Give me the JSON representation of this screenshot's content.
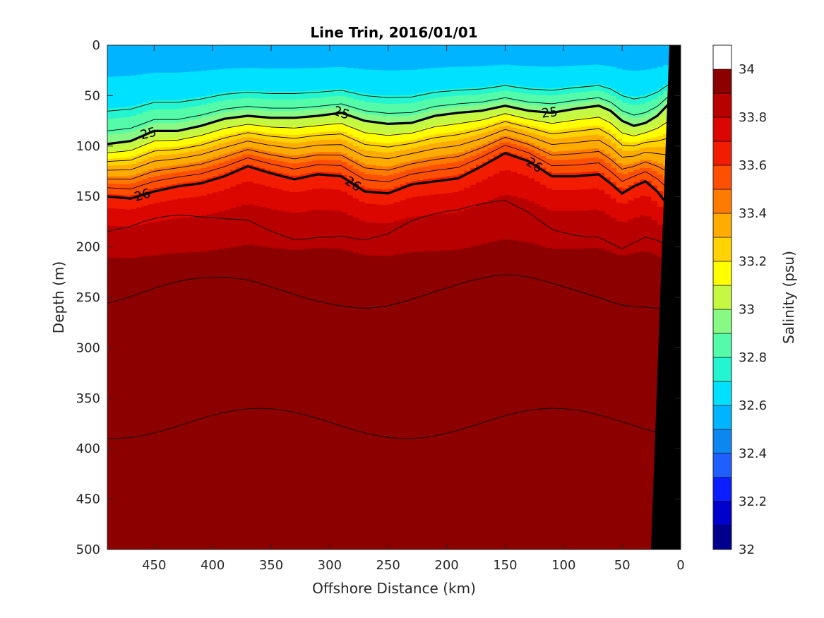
{
  "chart_data": {
    "type": "contourf",
    "title": "Line Trin, 2016/01/01",
    "xlabel": "Offshore Distance (km)",
    "ylabel": "Depth (m)",
    "xlim": [
      490,
      0
    ],
    "ylim": [
      0,
      500
    ],
    "x_ticks": [
      450,
      400,
      350,
      300,
      250,
      200,
      150,
      100,
      50,
      0
    ],
    "x_tick_labels": [
      "450",
      "400",
      "350",
      "300",
      "250",
      "200",
      "150",
      "100",
      "50",
      "0"
    ],
    "y_ticks": [
      0,
      50,
      100,
      150,
      200,
      250,
      300,
      350,
      400,
      450,
      500
    ],
    "y_tick_labels": [
      "0",
      "50",
      "100",
      "150",
      "200",
      "250",
      "300",
      "350",
      "400",
      "450",
      "500"
    ],
    "colorbar": {
      "label": "Salinity (psu)",
      "range": [
        32,
        34.1
      ],
      "levels_step": 0.1,
      "ticks": [
        32,
        32.2,
        32.4,
        32.6,
        32.8,
        33,
        33.2,
        33.4,
        33.6,
        33.8,
        34
      ],
      "tick_labels": [
        "32",
        "32.2",
        "32.4",
        "32.6",
        "32.8",
        "33",
        "33.2",
        "33.4",
        "33.6",
        "33.8",
        "34"
      ],
      "colors": [
        "#00008f",
        "#0000cd",
        "#0a1eff",
        "#1f5fff",
        "#0c87f1",
        "#00b4ff",
        "#00e1ff",
        "#22f5cf",
        "#54fcaa",
        "#88f985",
        "#c4f842",
        "#ffff00",
        "#ffd200",
        "#ffab00",
        "#ff7a00",
        "#ff4f00",
        "#f21d00",
        "#dc0600",
        "#b80000",
        "#8c0000"
      ]
    },
    "salinity_profile": {
      "depth": [
        0,
        40,
        60,
        75,
        90,
        105,
        118,
        130,
        145,
        165,
        200,
        260,
        340,
        450,
        500
      ],
      "psu": [
        32.55,
        32.65,
        32.85,
        33.0,
        33.2,
        33.35,
        33.5,
        33.6,
        33.7,
        33.8,
        33.9,
        33.95,
        34.02,
        34.05,
        34.06
      ]
    },
    "isopycnal_25": {
      "label": "25",
      "distance_km": [
        490,
        470,
        450,
        430,
        410,
        390,
        370,
        350,
        330,
        310,
        290,
        270,
        250,
        230,
        210,
        190,
        170,
        150,
        130,
        110,
        90,
        70,
        60,
        50,
        40,
        30,
        20,
        10
      ],
      "depth_m": [
        98,
        95,
        85,
        85,
        80,
        73,
        70,
        72,
        72,
        70,
        67,
        75,
        78,
        77,
        70,
        67,
        65,
        60,
        65,
        67,
        63,
        60,
        65,
        75,
        80,
        77,
        70,
        58
      ]
    },
    "isopycnal_26": {
      "label": "26",
      "distance_km": [
        490,
        470,
        450,
        430,
        410,
        390,
        370,
        350,
        330,
        310,
        290,
        270,
        250,
        230,
        210,
        190,
        170,
        150,
        130,
        110,
        90,
        70,
        60,
        50,
        40,
        30,
        20,
        10
      ],
      "depth_m": [
        150,
        152,
        145,
        140,
        137,
        130,
        120,
        127,
        133,
        128,
        130,
        145,
        147,
        138,
        135,
        132,
        120,
        107,
        115,
        130,
        130,
        128,
        137,
        147,
        140,
        135,
        145,
        160
      ]
    },
    "thin_contours_above_25_m": [
      50,
      65
    ],
    "thin_contours_between_m": [
      9,
      18,
      27,
      36,
      45
    ],
    "deep_contours_m": [
      180,
      245,
      375
    ]
  }
}
